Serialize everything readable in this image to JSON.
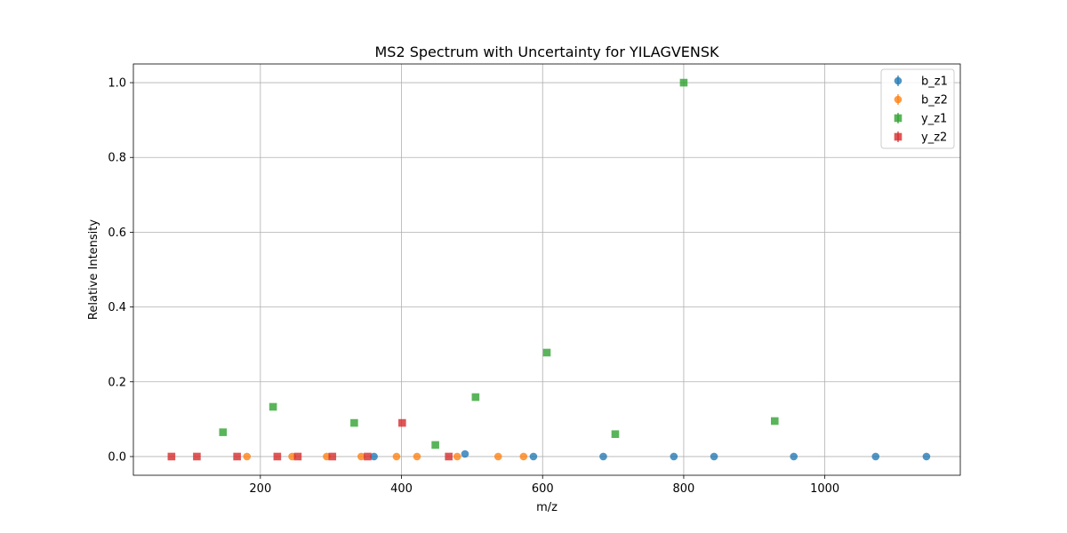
{
  "chart_data": {
    "type": "scatter",
    "title": "MS2 Spectrum with Uncertainty for YILAGVENSK",
    "xlabel": "m/z",
    "ylabel": "Relative Intensity",
    "xlim": [
      20,
      1192
    ],
    "ylim": [
      -0.05,
      1.05
    ],
    "xticks": [
      200,
      400,
      600,
      800,
      1000
    ],
    "yticks": [
      0.0,
      0.2,
      0.4,
      0.6,
      0.8,
      1.0
    ],
    "xtick_labels": [
      "200",
      "400",
      "600",
      "800",
      "1000"
    ],
    "ytick_labels": [
      "0.0",
      "0.2",
      "0.4",
      "0.6",
      "0.8",
      "1.0"
    ],
    "grid": true,
    "legend_position": "top-right",
    "series": [
      {
        "name": "b_z1",
        "marker": "circle",
        "color": "#1f77b4",
        "x": [
          361,
          490,
          587,
          686,
          786,
          843,
          956,
          1072,
          1144
        ],
        "y": [
          0,
          0.007,
          0,
          0,
          0,
          0,
          0,
          0,
          0
        ]
      },
      {
        "name": "b_z2",
        "marker": "circle",
        "color": "#ff7f0e",
        "x": [
          181,
          245,
          294,
          343,
          393,
          422,
          479,
          537,
          573
        ],
        "y": [
          0,
          0,
          0,
          0,
          0,
          0,
          0,
          0,
          0
        ]
      },
      {
        "name": "y_z1",
        "marker": "square",
        "color": "#2ca02c",
        "x": [
          147,
          218,
          333,
          448,
          505,
          606,
          703,
          800,
          929
        ],
        "y": [
          0.065,
          0.133,
          0.09,
          0.031,
          0.159,
          0.278,
          0.06,
          1.0,
          0.095
        ]
      },
      {
        "name": "y_z2",
        "marker": "square",
        "color": "#d62728",
        "x": [
          74,
          110,
          167,
          224,
          253,
          302,
          352,
          401,
          467
        ],
        "y": [
          0,
          0,
          0,
          0,
          0,
          0,
          0,
          0.09,
          0
        ]
      }
    ]
  }
}
